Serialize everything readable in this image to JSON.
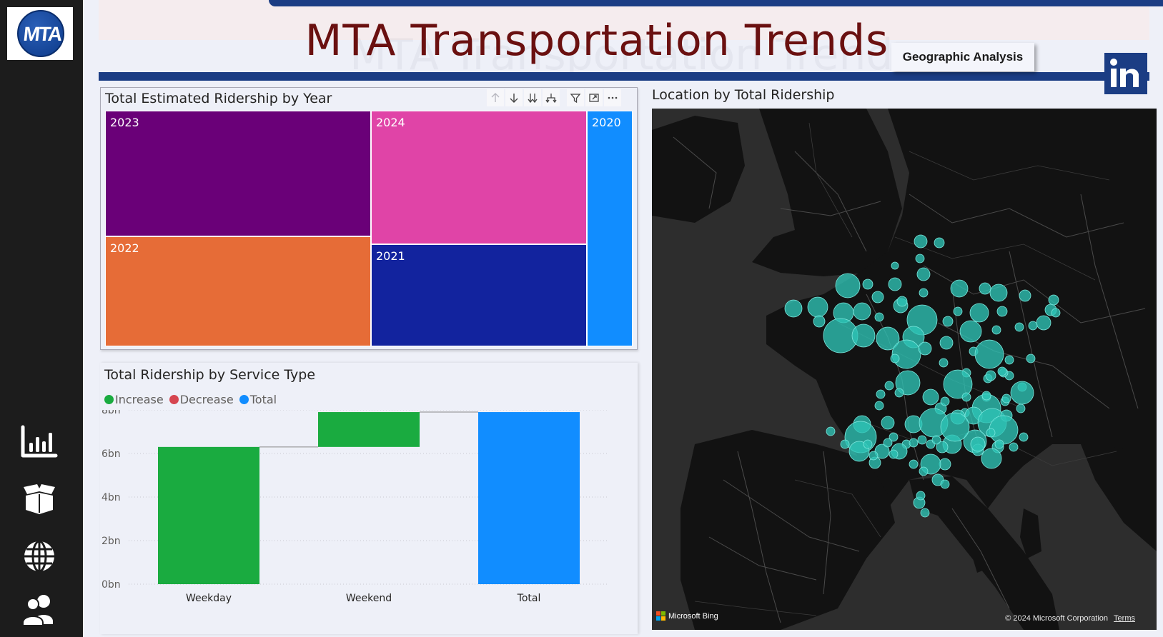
{
  "app": {
    "logo_text": "MTA",
    "title": "MTA Transportation Trends",
    "geo_button_label": "Geographic Analysis",
    "linkedin_icon": "linkedin-icon"
  },
  "sidebar": {
    "items": [
      {
        "name": "bar-chart-icon"
      },
      {
        "name": "open-box-icon"
      },
      {
        "name": "globe-icon"
      },
      {
        "name": "users-icon"
      }
    ]
  },
  "treemap": {
    "title": "Total Estimated Ridership by Year",
    "toolbar": [
      "arrow-up-icon",
      "arrow-down-icon",
      "double-arrow-down-icon",
      "expand-hierarchy-icon",
      "filter-icon",
      "focus-mode-icon",
      "more-options-icon"
    ],
    "chart_data": {
      "type": "treemap",
      "title": "Total Estimated Ridership by Year",
      "items": [
        {
          "label": "2023",
          "value": 7.1,
          "color": "#6a0078"
        },
        {
          "label": "2022",
          "value": 6.0,
          "color": "#e66c37"
        },
        {
          "label": "2024",
          "value": 7.1,
          "color": "#e044a7"
        },
        {
          "label": "2021",
          "value": 4.9,
          "color": "#12239e"
        },
        {
          "label": "2020",
          "value": 2.5,
          "color": "#118dff"
        }
      ]
    }
  },
  "waterfall": {
    "title": "Total Ridership by Service Type",
    "legend": [
      {
        "label": "Increase",
        "color": "#1aab40"
      },
      {
        "label": "Decrease",
        "color": "#d64550"
      },
      {
        "label": "Total",
        "color": "#118dff"
      }
    ],
    "chart_data": {
      "type": "bar",
      "subtype": "waterfall",
      "title": "Total Ridership by Service Type",
      "categories": [
        "Weekday",
        "Weekend",
        "Total"
      ],
      "series": [
        {
          "name": "Increase",
          "values": [
            6.3,
            1.6,
            null
          ]
        },
        {
          "name": "Total",
          "values": [
            null,
            null,
            7.9
          ]
        }
      ],
      "yticks": [
        "0bn",
        "2bn",
        "4bn",
        "6bn",
        "8bn"
      ],
      "ylim": [
        0,
        8
      ],
      "grid": true
    }
  },
  "map": {
    "title": "Location by Total Ridership",
    "bing_label": "Microsoft Bing",
    "copyright": "© 2024 Microsoft Corporation",
    "terms": "Terms",
    "bubble_color": "#2ec4b6"
  }
}
